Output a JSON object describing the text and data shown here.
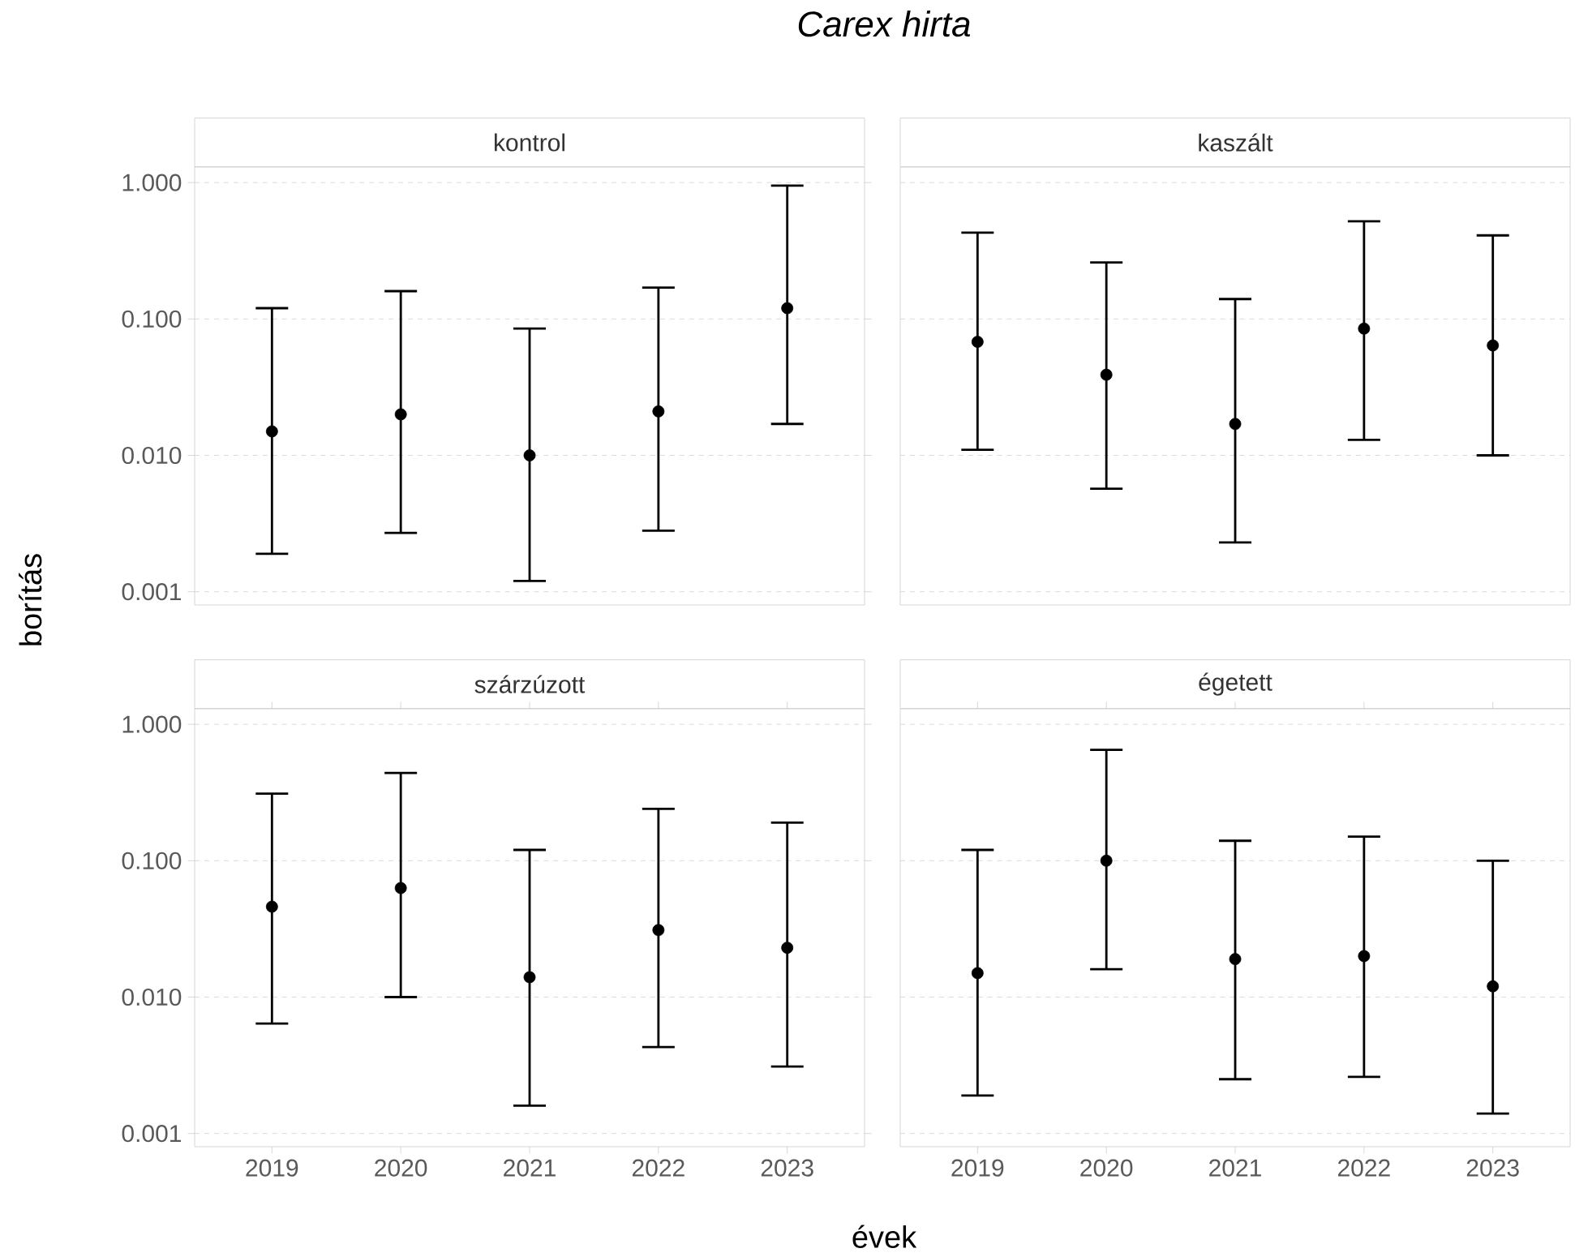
{
  "chart_data": [
    {
      "type": "scatter",
      "title": "kontrol",
      "annotations": [
        "Carex hirta"
      ],
      "ylabel": "borítás",
      "categories": [
        "2019",
        "2020",
        "2021",
        "2022",
        "2023"
      ],
      "values": [
        0.015,
        0.02,
        0.01,
        0.021,
        0.12
      ],
      "errors": [
        [
          0.0019,
          0.12
        ],
        [
          0.0027,
          0.16
        ],
        [
          0.0012,
          0.085
        ],
        [
          0.0028,
          0.17
        ],
        [
          0.017,
          0.95
        ]
      ],
      "color": "#000000",
      "marker": "circle",
      "log": "y",
      "ylim": [
        0.0008,
        1.3
      ],
      "yticks": [
        {
          "value": 0.001,
          "label": "0.001"
        },
        {
          "value": 0.01,
          "label": "0.010"
        },
        {
          "value": 0.1,
          "label": "0.100"
        },
        {
          "value": 1,
          "label": "1.000"
        }
      ],
      "grid": "y",
      "tick_labels": "y"
    },
    {
      "type": "scatter",
      "title": "kaszált",
      "categories": [
        "2019",
        "2020",
        "2021",
        "2022",
        "2023"
      ],
      "values": [
        0.068,
        0.039,
        0.017,
        0.085,
        0.064
      ],
      "errors": [
        [
          0.011,
          0.43
        ],
        [
          0.0057,
          0.26
        ],
        [
          0.0023,
          0.14
        ],
        [
          0.013,
          0.52
        ],
        [
          0.01,
          0.41
        ]
      ],
      "color": "#000000",
      "marker": "circle",
      "log": "y",
      "ylim": [
        0.0008,
        1.3
      ],
      "yticks": [
        0.001,
        0.01,
        0.1,
        1
      ],
      "grid": "y",
      "tick_labels": false
    },
    {
      "type": "scatter",
      "title": "szárzúzott",
      "xlabel": "évek",
      "categories": [
        "2019",
        "2020",
        "2021",
        "2022",
        "2023"
      ],
      "values": [
        0.046,
        0.063,
        0.014,
        0.031,
        0.023
      ],
      "errors": [
        [
          0.0064,
          0.31
        ],
        [
          0.01,
          0.44
        ],
        [
          0.0016,
          0.12
        ],
        [
          0.0043,
          0.24
        ],
        [
          0.0031,
          0.19
        ]
      ],
      "color": "#000000",
      "marker": "circle",
      "log": "y",
      "ylim": [
        0.0008,
        1.3
      ],
      "yticks": [
        {
          "value": 0.001,
          "label": "0.001"
        },
        {
          "value": 0.01,
          "label": "0.010"
        },
        {
          "value": 0.1,
          "label": "0.100"
        },
        {
          "value": 1,
          "label": "1.000"
        }
      ],
      "grid": "y"
    },
    {
      "type": "scatter",
      "title": "égetett",
      "categories": [
        "2019",
        "2020",
        "2021",
        "2022",
        "2023"
      ],
      "values": [
        0.015,
        0.1,
        0.019,
        0.02,
        0.012
      ],
      "errors": [
        [
          0.0019,
          0.12
        ],
        [
          0.016,
          0.65
        ],
        [
          0.0025,
          0.14
        ],
        [
          0.0026,
          0.15
        ],
        [
          0.0014,
          0.1
        ]
      ],
      "color": "#000000",
      "marker": "circle",
      "log": "y",
      "ylim": [
        0.0008,
        1.3
      ],
      "yticks": [
        0.001,
        0.01,
        0.1,
        1
      ],
      "grid": "y",
      "tick_labels": "x"
    }
  ]
}
